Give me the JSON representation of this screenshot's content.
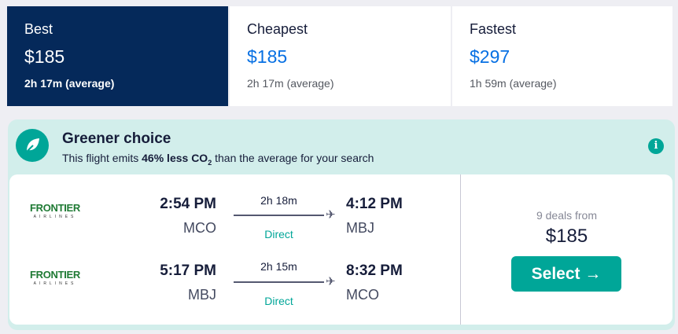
{
  "tabs": [
    {
      "label": "Best",
      "price": "$185",
      "duration": "2h 17m (average)",
      "active": true
    },
    {
      "label": "Cheapest",
      "price": "$185",
      "duration": "2h 17m (average)"
    },
    {
      "label": "Fastest",
      "price": "$297",
      "duration": "1h 59m (average)"
    }
  ],
  "greener": {
    "title": "Greener choice",
    "sub_pre": "This flight emits ",
    "sub_bold": "46% less CO",
    "sub_sub": "2",
    "sub_post": " than the average for your search",
    "icon": "leaf-icon",
    "info_icon": "info-icon"
  },
  "legs": [
    {
      "airline": "FRONTIER",
      "airline_sub": "AIRLINES",
      "depart": "2:54 PM",
      "from": "MCO",
      "duration": "2h 18m",
      "stops": "Direct",
      "arrive": "4:12 PM",
      "to": "MBJ"
    },
    {
      "airline": "FRONTIER",
      "airline_sub": "AIRLINES",
      "depart": "5:17 PM",
      "from": "MBJ",
      "duration": "2h 15m",
      "stops": "Direct",
      "arrive": "8:32 PM",
      "to": "MCO"
    }
  ],
  "deal": {
    "deals_text": "9 deals from",
    "price": "$185",
    "select_label": "Select →"
  },
  "colors": {
    "active_tab": "#05295a",
    "accent": "#00a698",
    "price_blue": "#0770e3",
    "green_bg": "#d2eeeb"
  }
}
